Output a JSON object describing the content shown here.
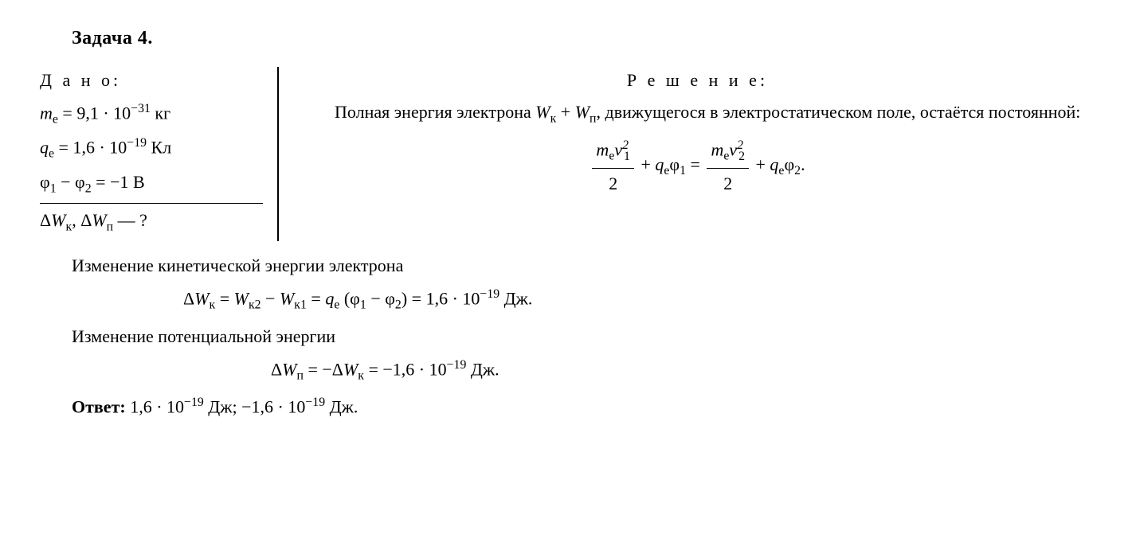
{
  "title": "Задача 4.",
  "given": {
    "label": "Д а н о:",
    "mass_sym": "m",
    "mass_sub": "e",
    "mass_val": " = 9,1 · 10",
    "mass_exp": "−31",
    "mass_unit": " кг",
    "charge_sym": "q",
    "charge_sub": "e",
    "charge_val": " = 1,6 · 10",
    "charge_exp": "−19",
    "charge_unit": " Кл",
    "phi_expr": "φ",
    "phi_sub1": "1",
    "phi_minus": " − φ",
    "phi_sub2": "2",
    "phi_val": " = −1 ",
    "phi_unit": "В",
    "find_dw": "Δ",
    "find_W": "W",
    "find_k": "к",
    "find_comma": ", Δ",
    "find_p": "п",
    "find_q": " — ?"
  },
  "solution": {
    "label": "Р е ш е н и е:",
    "text1_a": "Полная энергия электрона ",
    "text1_wk": "W",
    "text1_ksub": "к",
    "text1_plus": " + ",
    "text1_wp": "W",
    "text1_psub": "п",
    "text1_b": ", дви­жущегося в электростатическом поле, оста­ётся постоянной:",
    "eq1_num1_m": "m",
    "eq1_num1_e": "e",
    "eq1_num1_v": "v",
    "eq1_num1_1": "1",
    "eq1_num1_sq": "2",
    "eq1_den": "2",
    "eq1_plus1": " + ",
    "eq1_q": "q",
    "eq1_qe": "e",
    "eq1_phi1": "φ",
    "eq1_phi1sub": "1",
    "eq1_equals": " = ",
    "eq1_num2_v2": "2",
    "eq1_phi2sub": "2",
    "eq1_end": "."
  },
  "kinetic": {
    "text": "Изменение кинетической энергии электрона",
    "eq_dW": "Δ",
    "eq_W": "W",
    "eq_k": "к",
    "eq_eq1": " = ",
    "eq_k2": "к2",
    "eq_minus": " − ",
    "eq_k1": "к1",
    "eq_eq2": " = ",
    "eq_q": "q",
    "eq_e": "e",
    "eq_paren_open": " (φ",
    "eq_1": "1",
    "eq_minus2": " − φ",
    "eq_2": "2",
    "eq_paren_close": ") = 1,6 · 10",
    "eq_exp": "−19",
    "eq_unit": " Дж."
  },
  "potential": {
    "text": "Изменение потенциальной энергии",
    "eq_dW": "Δ",
    "eq_W": "W",
    "eq_p": "п",
    "eq_eq": " = −Δ",
    "eq_k": "к",
    "eq_val": " = −1,6 · 10",
    "eq_exp": "−19",
    "eq_unit": " Дж."
  },
  "answer": {
    "label": "Ответ: ",
    "val1": "1,6 · 10",
    "exp1": "−19",
    "unit1": " Дж; ",
    "val2": "−1,6 · 10",
    "exp2": "−19",
    "unit2": " Дж."
  }
}
